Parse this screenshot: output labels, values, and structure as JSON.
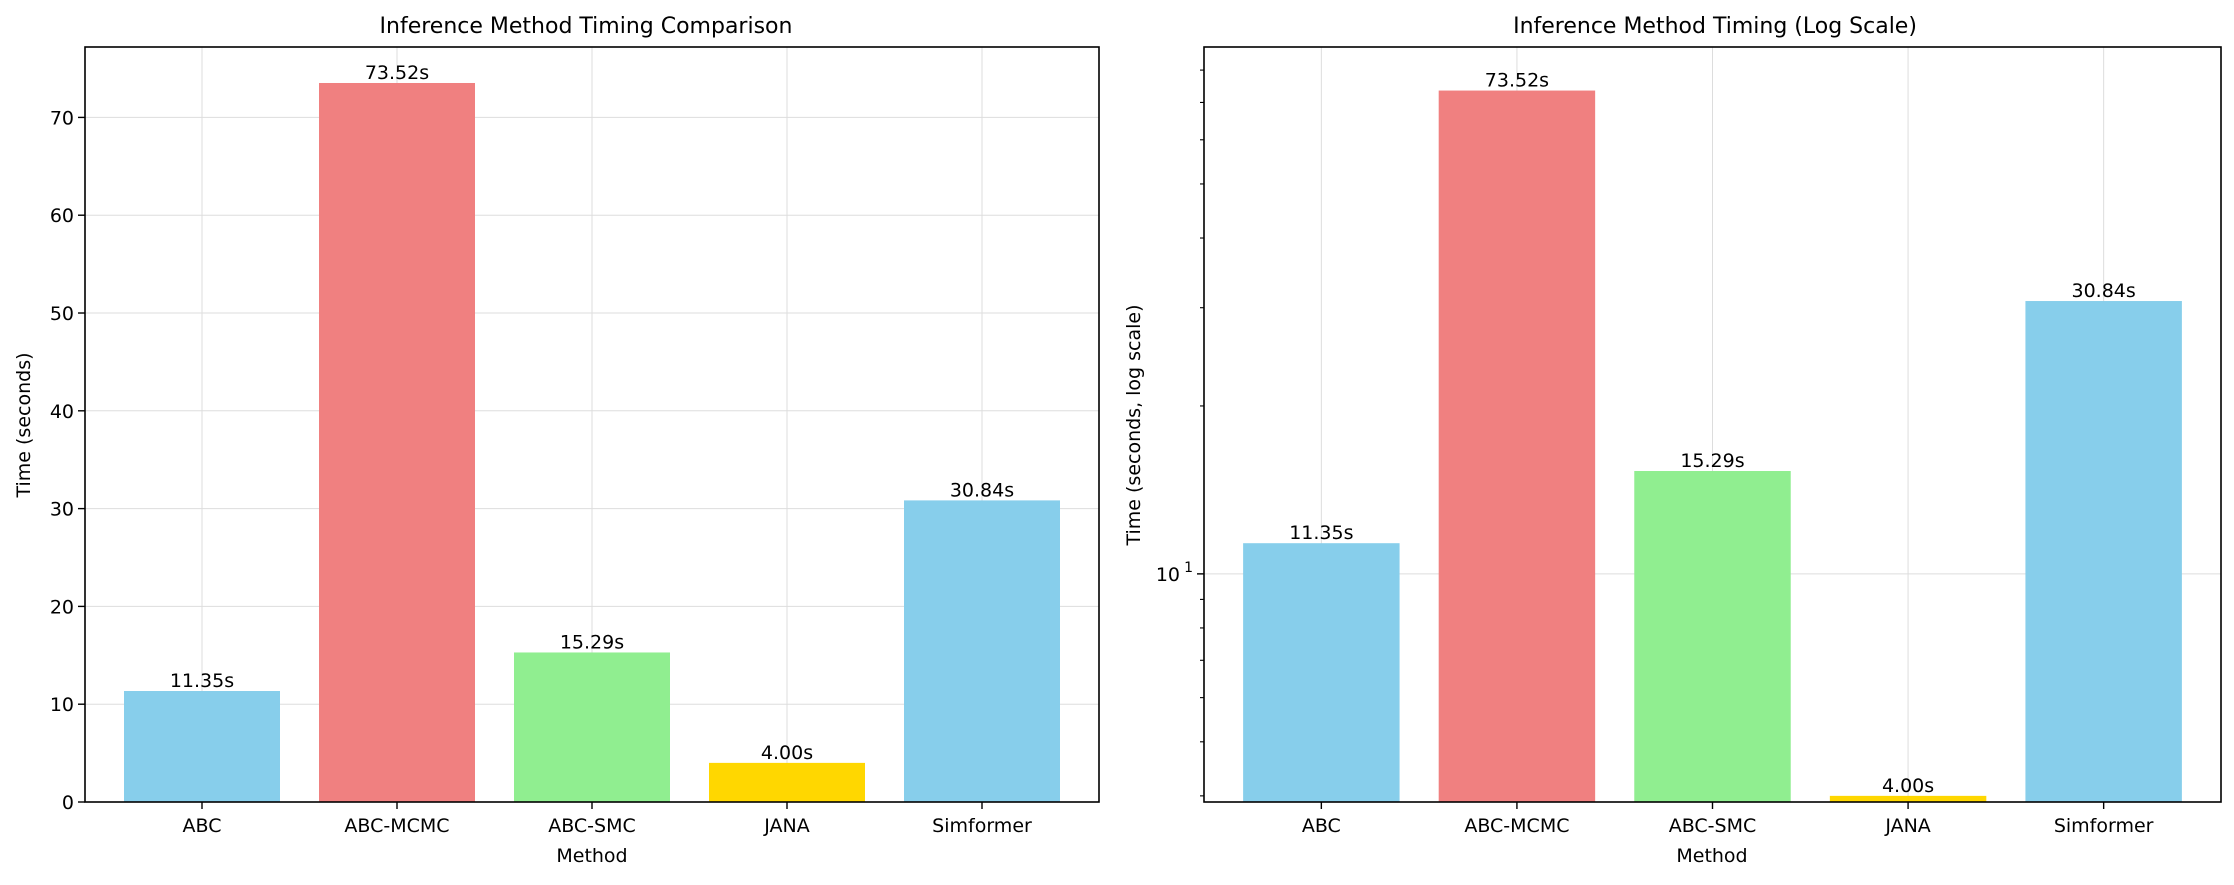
{
  "chart_data": [
    {
      "type": "bar",
      "title": "Inference Method Timing Comparison",
      "xlabel": "Method",
      "ylabel": "Time (seconds)",
      "categories": [
        "ABC",
        "ABC-MCMC",
        "ABC-SMC",
        "JANA",
        "Simformer"
      ],
      "values": [
        11.35,
        73.52,
        15.29,
        4.0,
        30.84
      ],
      "value_labels": [
        "11.35s",
        "73.52s",
        "15.29s",
        "4.00s",
        "30.84s"
      ],
      "colors": [
        "#87ceeb",
        "#f08080",
        "#90ee90",
        "#ffd700",
        "#87ceeb"
      ],
      "ylim": [
        0,
        77.2
      ],
      "yscale": "linear",
      "yticks": [
        0,
        10,
        20,
        30,
        40,
        50,
        60,
        70
      ],
      "ytick_labels": [
        "0",
        "10",
        "20",
        "30",
        "40",
        "50",
        "60",
        "70"
      ],
      "grid": true
    },
    {
      "type": "bar",
      "title": "Inference Method Timing (Log Scale)",
      "xlabel": "Method",
      "ylabel": "Time (seconds, log scale)",
      "categories": [
        "ABC",
        "ABC-MCMC",
        "ABC-SMC",
        "JANA",
        "Simformer"
      ],
      "values": [
        11.35,
        73.52,
        15.29,
        4.0,
        30.84
      ],
      "value_labels": [
        "11.35s",
        "73.52s",
        "15.29s",
        "4.00s",
        "30.84s"
      ],
      "colors": [
        "#87ceeb",
        "#f08080",
        "#90ee90",
        "#ffd700",
        "#87ceeb"
      ],
      "ylim": [
        3.9,
        88
      ],
      "yscale": "log",
      "yticks": [
        10
      ],
      "ytick_labels": [
        "10^1"
      ],
      "minor_yticks": [
        4,
        5,
        6,
        7,
        8,
        9,
        20,
        30,
        40,
        50,
        60,
        70,
        80
      ],
      "grid": true
    }
  ]
}
